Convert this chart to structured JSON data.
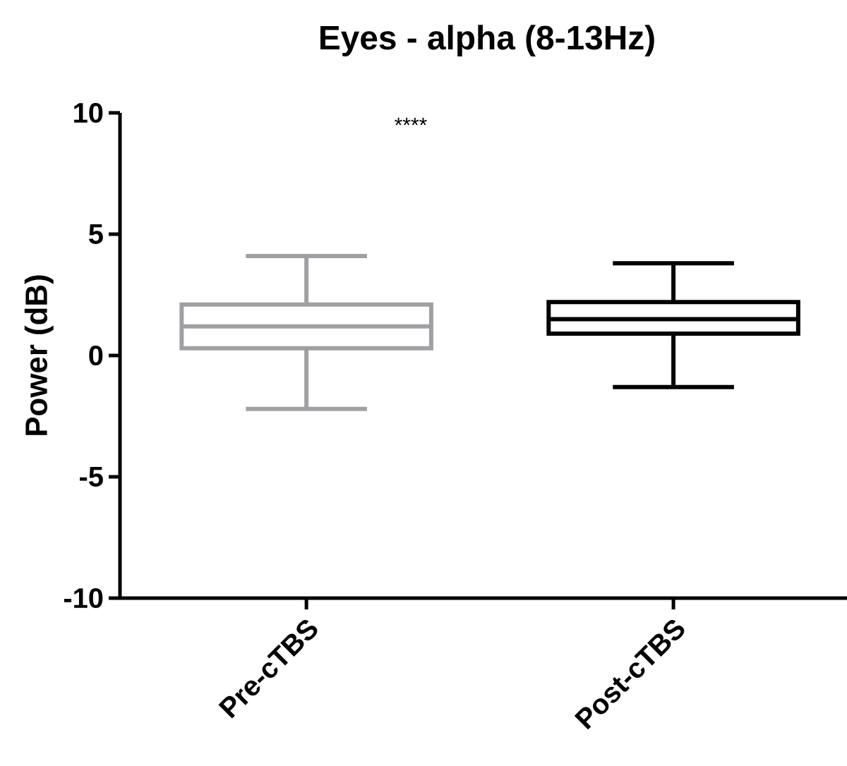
{
  "chart_data": {
    "type": "box",
    "title": "Eyes - alpha (8-13Hz)",
    "ylabel": "Power (dB)",
    "categories": [
      "Pre-cTBS",
      "Post-cTBS"
    ],
    "colors": [
      "#a0a0a4",
      "#000000"
    ],
    "boxes": [
      {
        "low": -2.2,
        "q1": 0.3,
        "median": 1.2,
        "q3": 2.1,
        "high": 4.1
      },
      {
        "low": -1.3,
        "q1": 0.9,
        "median": 1.5,
        "q3": 2.2,
        "high": 3.8
      }
    ],
    "ylim": [
      -10,
      10
    ],
    "yticks": [
      -10,
      -5,
      0,
      5,
      10
    ],
    "annotations": [
      "****"
    ]
  }
}
